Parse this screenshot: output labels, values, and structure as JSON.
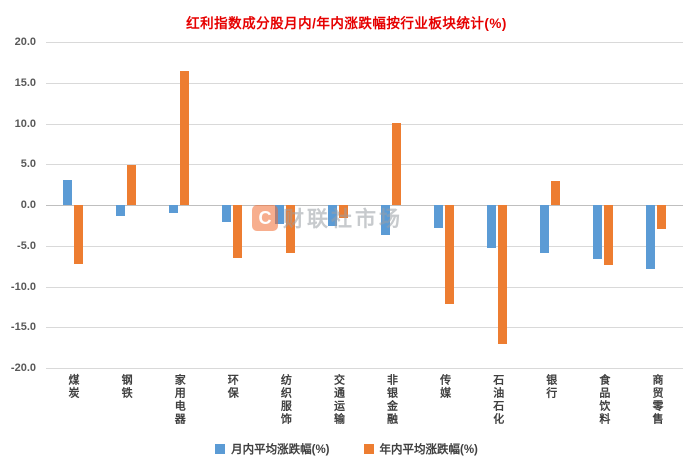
{
  "title": "红利指数成分股月内/年内涨跌幅按行业板块统计(%)",
  "watermark": {
    "logo": "C",
    "text": "财联社市场"
  },
  "chart_data": {
    "type": "bar",
    "title": "红利指数成分股月内/年内涨跌幅按行业板块统计(%)",
    "categories": [
      "煤炭",
      "钢铁",
      "家用电器",
      "环保",
      "纺织服饰",
      "交通运输",
      "非银金融",
      "传媒",
      "石油石化",
      "银行",
      "食品饮料",
      "商贸零售"
    ],
    "series": [
      {
        "name": "月内平均涨跌幅(%)",
        "color": "#5B9BD5",
        "values": [
          3.1,
          -1.3,
          -1.0,
          -2.1,
          -2.3,
          -2.6,
          -3.7,
          -2.8,
          -5.3,
          -5.9,
          -6.6,
          -7.9
        ]
      },
      {
        "name": "年内平均涨跌幅(%)",
        "color": "#ED7D31",
        "values": [
          -7.2,
          4.9,
          16.5,
          -6.5,
          -5.9,
          -1.6,
          10.1,
          -12.2,
          -17.1,
          2.9,
          -7.4,
          -2.9
        ]
      }
    ],
    "ylim": [
      -20,
      20
    ],
    "ytick_step": 5,
    "ytick_format_decimals": 1,
    "grid": true,
    "legend_position": "bottom"
  }
}
